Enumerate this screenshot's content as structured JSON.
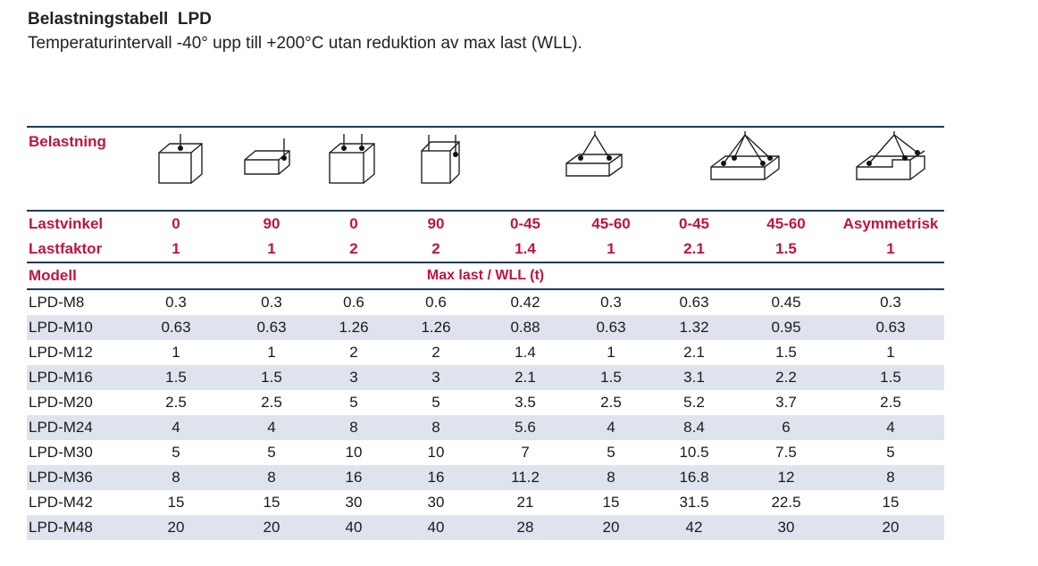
{
  "title": "Belastningstabell  LPD",
  "subtitle": "Temperaturintervall -40° upp till +200°C utan reduktion av max last (WLL).",
  "header": {
    "belastning_label": "Belastning",
    "lastvinkel_label": "Lastvinkel",
    "lastfaktor_label": "Lastfaktor",
    "modell_label": "Modell",
    "maxlast_label": "Max last / WLL (t)",
    "icons": [
      "single-vertical-lift-icon",
      "single-side-lift-icon",
      "double-vertical-lift-icon",
      "double-side-lift-icon",
      "two-leg-sling-0-45-icon",
      "two-leg-sling-45-60-icon",
      "four-leg-sling-0-45-icon",
      "four-leg-sling-45-60-icon",
      "asymmetric-sling-icon"
    ],
    "lastvinkel": [
      "0",
      "90",
      "0",
      "90",
      "0-45",
      "45-60",
      "0-45",
      "45-60",
      "Asymmetrisk"
    ],
    "lastfaktor": [
      "1",
      "1",
      "2",
      "2",
      "1.4",
      "1",
      "2.1",
      "1.5",
      "1"
    ]
  },
  "rows": [
    {
      "model": "LPD-M8",
      "values": [
        "0.3",
        "0.3",
        "0.6",
        "0.6",
        "0.42",
        "0.3",
        "0.63",
        "0.45",
        "0.3"
      ]
    },
    {
      "model": "LPD-M10",
      "values": [
        "0.63",
        "0.63",
        "1.26",
        "1.26",
        "0.88",
        "0.63",
        "1.32",
        "0.95",
        "0.63"
      ]
    },
    {
      "model": "LPD-M12",
      "values": [
        "1",
        "1",
        "2",
        "2",
        "1.4",
        "1",
        "2.1",
        "1.5",
        "1"
      ]
    },
    {
      "model": "LPD-M16",
      "values": [
        "1.5",
        "1.5",
        "3",
        "3",
        "2.1",
        "1.5",
        "3.1",
        "2.2",
        "1.5"
      ]
    },
    {
      "model": "LPD-M20",
      "values": [
        "2.5",
        "2.5",
        "5",
        "5",
        "3.5",
        "2.5",
        "5.2",
        "3.7",
        "2.5"
      ]
    },
    {
      "model": "LPD-M24",
      "values": [
        "4",
        "4",
        "8",
        "8",
        "5.6",
        "4",
        "8.4",
        "6",
        "4"
      ]
    },
    {
      "model": "LPD-M30",
      "values": [
        "5",
        "5",
        "10",
        "10",
        "7",
        "5",
        "10.5",
        "7.5",
        "5"
      ]
    },
    {
      "model": "LPD-M36",
      "values": [
        "8",
        "8",
        "16",
        "16",
        "11.2",
        "8",
        "16.8",
        "12",
        "8"
      ]
    },
    {
      "model": "LPD-M42",
      "values": [
        "15",
        "15",
        "30",
        "30",
        "21",
        "15",
        "31.5",
        "22.5",
        "15"
      ]
    },
    {
      "model": "LPD-M48",
      "values": [
        "20",
        "20",
        "40",
        "40",
        "28",
        "20",
        "42",
        "30",
        "20"
      ]
    }
  ]
}
